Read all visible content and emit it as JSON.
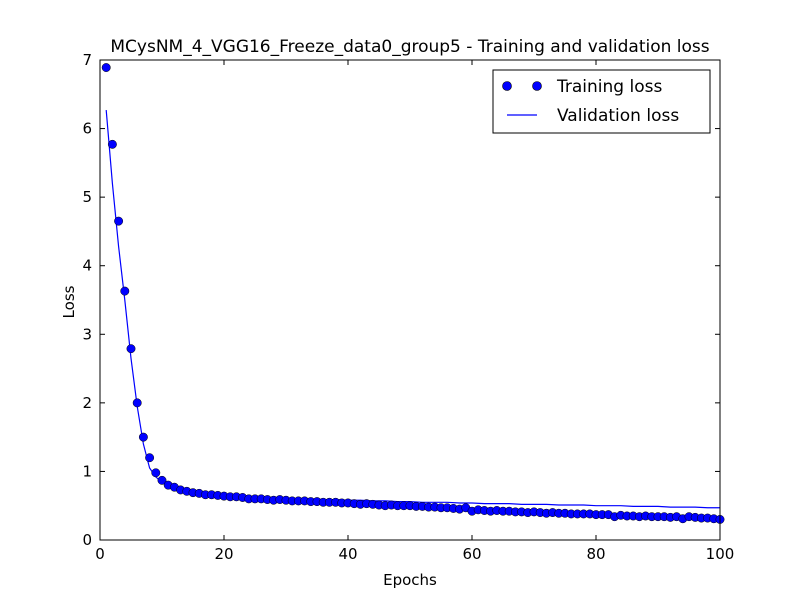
{
  "chart_data": {
    "type": "line",
    "title": "MCysNM_4_VGG16_Freeze_data0_group5 - Training and validation loss",
    "xlabel": "Epochs",
    "ylabel": "Loss",
    "xlim": [
      0,
      100
    ],
    "ylim": [
      0,
      7
    ],
    "xticks": [
      0,
      20,
      40,
      60,
      80,
      100
    ],
    "yticks": [
      0,
      1,
      2,
      3,
      4,
      5,
      6,
      7
    ],
    "grid": false,
    "legend_position": "top-right",
    "series": [
      {
        "name": "Training loss",
        "style": "markers",
        "color": "#0000ff",
        "x": [
          1,
          2,
          3,
          4,
          5,
          6,
          7,
          8,
          9,
          10,
          11,
          12,
          13,
          14,
          15,
          16,
          17,
          18,
          19,
          20,
          21,
          22,
          23,
          24,
          25,
          26,
          27,
          28,
          29,
          30,
          31,
          32,
          33,
          34,
          35,
          36,
          37,
          38,
          39,
          40,
          41,
          42,
          43,
          44,
          45,
          46,
          47,
          48,
          49,
          50,
          51,
          52,
          53,
          54,
          55,
          56,
          57,
          58,
          59,
          60,
          61,
          62,
          63,
          64,
          65,
          66,
          67,
          68,
          69,
          70,
          71,
          72,
          73,
          74,
          75,
          76,
          77,
          78,
          79,
          80,
          81,
          82,
          83,
          84,
          85,
          86,
          87,
          88,
          89,
          90,
          91,
          92,
          93,
          94,
          95,
          96,
          97,
          98,
          99,
          100
        ],
        "y": [
          6.89,
          5.77,
          4.65,
          3.63,
          2.79,
          2.0,
          1.5,
          1.2,
          0.98,
          0.87,
          0.8,
          0.77,
          0.73,
          0.71,
          0.69,
          0.68,
          0.66,
          0.66,
          0.65,
          0.64,
          0.63,
          0.63,
          0.62,
          0.6,
          0.6,
          0.6,
          0.59,
          0.58,
          0.59,
          0.58,
          0.57,
          0.57,
          0.57,
          0.56,
          0.56,
          0.55,
          0.55,
          0.55,
          0.54,
          0.54,
          0.53,
          0.52,
          0.53,
          0.52,
          0.51,
          0.5,
          0.51,
          0.5,
          0.5,
          0.5,
          0.49,
          0.49,
          0.48,
          0.48,
          0.47,
          0.47,
          0.46,
          0.45,
          0.47,
          0.42,
          0.44,
          0.43,
          0.42,
          0.43,
          0.42,
          0.42,
          0.41,
          0.41,
          0.4,
          0.41,
          0.4,
          0.39,
          0.4,
          0.39,
          0.39,
          0.38,
          0.38,
          0.38,
          0.38,
          0.37,
          0.37,
          0.37,
          0.34,
          0.36,
          0.35,
          0.35,
          0.34,
          0.35,
          0.34,
          0.34,
          0.34,
          0.33,
          0.34,
          0.31,
          0.34,
          0.33,
          0.32,
          0.32,
          0.31,
          0.3
        ]
      },
      {
        "name": "Validation loss",
        "style": "line",
        "color": "#0000ff",
        "x": [
          1,
          2,
          3,
          4,
          5,
          6,
          7,
          8,
          9,
          10,
          11,
          12,
          13,
          14,
          15,
          16,
          17,
          18,
          19,
          20,
          22,
          24,
          26,
          28,
          30,
          32,
          34,
          36,
          38,
          40,
          42,
          44,
          46,
          48,
          50,
          52,
          54,
          56,
          58,
          60,
          62,
          64,
          66,
          68,
          70,
          72,
          74,
          76,
          78,
          80,
          82,
          84,
          86,
          88,
          90,
          92,
          94,
          96,
          98,
          100
        ],
        "y": [
          6.27,
          5.2,
          4.28,
          3.5,
          2.65,
          1.95,
          1.4,
          1.05,
          0.92,
          0.84,
          0.79,
          0.76,
          0.73,
          0.71,
          0.7,
          0.69,
          0.68,
          0.67,
          0.66,
          0.65,
          0.64,
          0.63,
          0.62,
          0.61,
          0.61,
          0.6,
          0.6,
          0.59,
          0.59,
          0.58,
          0.58,
          0.57,
          0.57,
          0.56,
          0.56,
          0.55,
          0.55,
          0.55,
          0.54,
          0.54,
          0.53,
          0.53,
          0.53,
          0.52,
          0.52,
          0.52,
          0.51,
          0.51,
          0.51,
          0.5,
          0.5,
          0.5,
          0.49,
          0.49,
          0.49,
          0.48,
          0.48,
          0.48,
          0.47,
          0.47
        ]
      }
    ]
  }
}
